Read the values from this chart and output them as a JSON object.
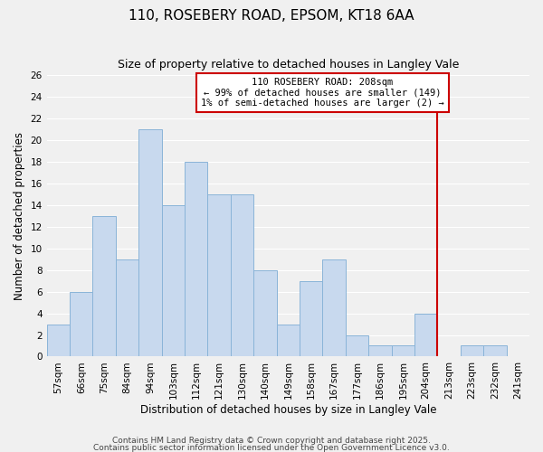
{
  "title": "110, ROSEBERY ROAD, EPSOM, KT18 6AA",
  "subtitle": "Size of property relative to detached houses in Langley Vale",
  "xlabel": "Distribution of detached houses by size in Langley Vale",
  "ylabel": "Number of detached properties",
  "footer1": "Contains HM Land Registry data © Crown copyright and database right 2025.",
  "footer2": "Contains public sector information licensed under the Open Government Licence v3.0.",
  "bins": [
    "57sqm",
    "66sqm",
    "75sqm",
    "84sqm",
    "94sqm",
    "103sqm",
    "112sqm",
    "121sqm",
    "130sqm",
    "140sqm",
    "149sqm",
    "158sqm",
    "167sqm",
    "177sqm",
    "186sqm",
    "195sqm",
    "204sqm",
    "213sqm",
    "223sqm",
    "232sqm",
    "241sqm"
  ],
  "counts": [
    3,
    6,
    13,
    9,
    21,
    14,
    18,
    15,
    15,
    8,
    3,
    7,
    9,
    2,
    1,
    1,
    4,
    0,
    1,
    1,
    0
  ],
  "bar_color": "#c8d9ee",
  "bar_edge_color": "#8ab4d8",
  "vline_x": 16.5,
  "vline_color": "#cc0000",
  "annotation_line1": "110 ROSEBERY ROAD: 208sqm",
  "annotation_line2": "← 99% of detached houses are smaller (149)",
  "annotation_line3": "1% of semi-detached houses are larger (2) →",
  "annotation_box_color": "#ffffff",
  "annotation_edge_color": "#cc0000",
  "ylim": [
    0,
    26
  ],
  "yticks": [
    0,
    2,
    4,
    6,
    8,
    10,
    12,
    14,
    16,
    18,
    20,
    22,
    24,
    26
  ],
  "background_color": "#f0f0f0",
  "grid_color": "#ffffff",
  "title_fontsize": 11,
  "subtitle_fontsize": 9,
  "axis_label_fontsize": 8.5,
  "tick_fontsize": 7.5,
  "annotation_fontsize": 7.5,
  "footer_fontsize": 6.5
}
